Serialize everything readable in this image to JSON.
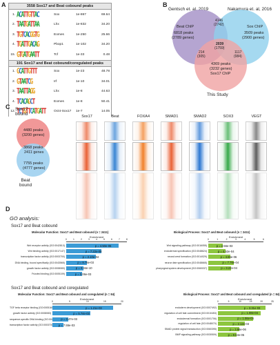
{
  "panelA": {
    "letter": "A",
    "header1": "3558 Sox17 and Beat cobound peaks",
    "header2": "191 Sox17 and Beat cobound/coregulated peaks",
    "rows1": [
      {
        "n": "1.",
        "logo": "ACATTGTTAC",
        "tf": "Sox",
        "pv": "1e-867",
        "pct": "69.64",
        "color": "#3a7"
      },
      {
        "n": "2.",
        "logo": "TAATGATTAA",
        "tf": "Lhx",
        "pv": "1e-832",
        "pct": "34.20",
        "color": "#c33"
      },
      {
        "n": "3.",
        "logo": "TGTCACGGTG",
        "tf": "Eomes",
        "pv": "1e-250",
        "pct": "25.66",
        "color": "#36c"
      },
      {
        "n": "4.",
        "logo": "TGATTGACAG",
        "tf": "Pbop1",
        "pv": "1e-102",
        "pct": "34.20",
        "color": "#c90"
      },
      {
        "n": "15.",
        "logo": "GTGATGAATT",
        "tf": "Tcf",
        "pv": "1e-33",
        "pct": "0.48",
        "color": "#3a7"
      }
    ],
    "rows2": [
      {
        "n": "1.",
        "logo": "GCATTGTTT",
        "tf": "Sox",
        "pv": "1e-23",
        "pct": "48.78",
        "color": "#3a7"
      },
      {
        "n": "2.",
        "logo": "GTAATCG",
        "tf": "Irf",
        "pv": "1e-10",
        "pct": "34.01",
        "color": "#c33"
      },
      {
        "n": "3.",
        "logo": "TAATTAGG",
        "tf": "Lhx",
        "pv": "1e-8",
        "pct": "44.63",
        "color": "#c33"
      },
      {
        "n": "4.",
        "logo": "TCACAGCT",
        "tf": "Eomes",
        "pv": "1e-8",
        "pct": "50.41",
        "color": "#36c"
      },
      {
        "n": "12.",
        "logo": "TCTGTTCATGATT",
        "tf": "Oct4-Sox17",
        "pv": "1e-7",
        "pct": "14.05",
        "color": "#c33"
      }
    ]
  },
  "panelB": {
    "letter": "B",
    "label_left": "Gentsch et. al, 2019",
    "label_right": "Nakamura et. al, 2016",
    "beat": {
      "title": "Beat ChIP",
      "peaks": "6818 peaks",
      "genes": "(2789 genes)"
    },
    "sox_nak": {
      "title": "Sox ChIP",
      "peaks": "3509 peaks",
      "genes": "(2900 genes)"
    },
    "sox_this": {
      "peaks": "4369 peaks",
      "genes": "(3232 genes)",
      "title": "Sox17 ChIP"
    },
    "ab": {
      "top": "4146",
      "bottom": "(2742)"
    },
    "center": {
      "top": "2039",
      "bottom": "(1759)"
    },
    "ac": {
      "top": "214",
      "bottom": "(305)"
    },
    "bc": {
      "top": "1117",
      "bottom": "(984)"
    },
    "footer": "This Study"
  },
  "panelC": {
    "letter": "C",
    "sox_label": "Sox17\nbound",
    "beat_label": "Beat\nbound",
    "sox_peaks": "4480 peaks",
    "sox_genes": "(3200 genes)",
    "shared_peaks": "3868 peaks",
    "shared_genes": "2411 genes",
    "beat_peaks": "7755 peaks",
    "beat_genes": "(4777 genes)",
    "tracks": [
      {
        "name": "Sox17",
        "color": "#e8582a"
      },
      {
        "name": "Beat",
        "color": "#2f7fd1"
      },
      {
        "name": "FOXA4",
        "color": "#f07a1f"
      },
      {
        "name": "SMAD1",
        "color": "#e8582a"
      },
      {
        "name": "SMAD2",
        "color": "#1f6fcf"
      },
      {
        "name": "SOX3",
        "color": "#2aa43e"
      },
      {
        "name": "VEGT",
        "color": "#555555"
      }
    ]
  },
  "panelD": {
    "letter": "D",
    "heading": "GO analysis:",
    "sub1": "Sox17 and Beat cobound",
    "sub2": "Sox17 and Beat cobound and coregulated",
    "enrichment": "Enrichment",
    "charts": [
      {
        "title": "Molecular Function: Sox17 and Beat cobound (n = 2411)",
        "color": "#3b9bd6",
        "axis_ticks": [
          "0",
          "1",
          "2",
          "3",
          "4",
          "5",
          "6",
          "7",
          "8"
        ],
        "xmax": 8,
        "terms": [
          "Wnt receptor activity (GO:0042813)",
          "Wnt binding activity (GO:0017147)",
          "transcription factor activity (GO:0003700)",
          "DNA binding, bound specifically (GO:0043565)",
          "growth factor activity (GO:0008083)",
          "Frizzled binding (GO:0005109)"
        ],
        "values": [
          6.9,
          4.6,
          3.9,
          2.7,
          2.3,
          2.1
        ],
        "pvals": [
          "p = 4.50e-06",
          "p = 7.22e-08",
          "p = 2.10e-04",
          "p = 8.76e-03",
          "p = 2.34e-10",
          "p = 3.06e-03"
        ]
      },
      {
        "title": "Biological Process: Sox17 and Beat cobound (n = 2411)",
        "color": "#8dc63f",
        "axis_ticks": [
          "0",
          "1",
          "2",
          "3",
          "4",
          "5",
          "6"
        ],
        "xmax": 6,
        "terms": [
          "Wnt signaling pathway (GO:0016055)",
          "endodermal specification (GO:0048624)",
          "neural crest formation (GO:0014029)",
          "neuron fate specification (GO:0048665)",
          "pharyngeal system development (GO:0060037)"
        ],
        "values": [
          1.6,
          1.9,
          2.4,
          2.8,
          2.5
        ],
        "pvals": [
          "p = 2.56e-03",
          "p = 4.52e-04",
          "p = 4.86e-06",
          "p = 7.76e-04",
          "p = 3.22e-04"
        ]
      },
      {
        "title": "Molecular Function: Sox17 and Beat cobound and coregulated (n = 84)",
        "color": "#3b9bd6",
        "axis_ticks": [
          "0",
          "5",
          "10",
          "15",
          "20"
        ],
        "xmax": 20,
        "terms": [
          "TGF beta receptor binding (GO:0005160)",
          "growth factor activity (GO:0008083)",
          "sequence-specific DNA binding (GO:0043565)",
          "transcription factor activity (GO:0003700)"
        ],
        "values": [
          17.5,
          11,
          4.5,
          3.2
        ],
        "pvals": [
          "p = 1.21e-03",
          "p = 5.74e-03",
          "p = 3.47e-03",
          "p = 7.55e-03"
        ]
      },
      {
        "title": "Biological Process: Sox17 and Beat cobound and coregulated (n = 84)",
        "color": "#8dc63f",
        "axis_ticks": [
          "0",
          "5",
          "10",
          "15",
          "20",
          "25"
        ],
        "xmax": 25,
        "terms": [
          "endoderm development (GO:0007492)",
          "regulation of cell fate commitment (GO:0010453)",
          "endodermal formation (GO:0001706)",
          "regulation of cell fate (GO:0048070)",
          "SMAD protein signal transduction (GO:0060395)",
          "BMP signaling pathway (GO:0030509)"
        ],
        "values": [
          22,
          20,
          16.5,
          12.5,
          10,
          8.5
        ],
        "pvals": [
          "p = 3.31e-03",
          "p = 1.08e-04",
          "p = 1.06e-04",
          "p = 2.12e-03",
          "p = 3.96e-06",
          "p = 8.63e-05"
        ]
      }
    ]
  }
}
